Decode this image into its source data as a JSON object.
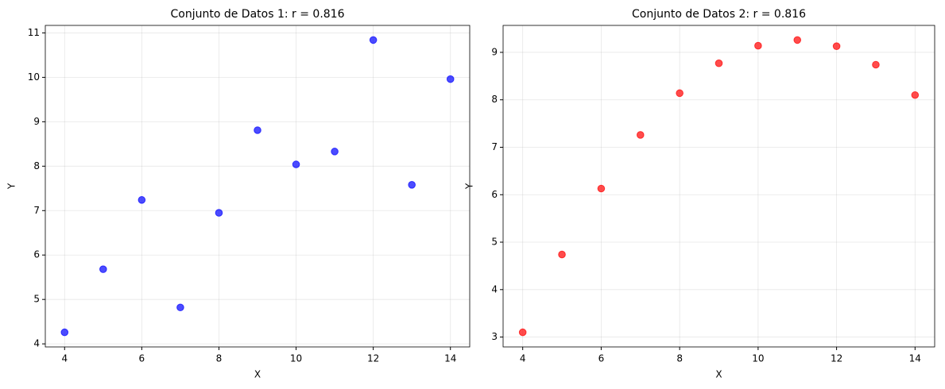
{
  "chart_data": [
    {
      "type": "scatter",
      "title": "Conjunto de Datos 1: r = 0.816",
      "x_label": "X",
      "y_label": "Y",
      "x": [
        10,
        8,
        13,
        9,
        11,
        14,
        6,
        4,
        12,
        7,
        5
      ],
      "series": [
        {
          "color": "#0000ff",
          "values": [
            8.04,
            6.95,
            7.58,
            8.81,
            8.33,
            9.96,
            7.24,
            4.26,
            10.84,
            4.82,
            5.68
          ]
        }
      ],
      "xlim": [
        3.5,
        14.5
      ],
      "xticks": [
        4,
        6,
        8,
        10,
        12,
        14
      ],
      "ylim": [
        3.931,
        11.169
      ],
      "yticks": [
        4,
        5,
        6,
        7,
        8,
        9,
        10,
        11
      ],
      "grid": true
    },
    {
      "type": "scatter",
      "title": "Conjunto de Datos 2: r = 0.816",
      "x_label": "X",
      "y_label": "Y",
      "x": [
        10,
        8,
        13,
        9,
        11,
        14,
        6,
        4,
        12,
        7,
        5
      ],
      "series": [
        {
          "color": "#ff0000",
          "values": [
            9.14,
            8.14,
            8.74,
            8.77,
            9.26,
            8.1,
            6.13,
            3.1,
            9.13,
            7.26,
            4.74
          ]
        }
      ],
      "xlim": [
        3.5,
        14.5
      ],
      "xticks": [
        4,
        6,
        8,
        10,
        12,
        14
      ],
      "ylim": [
        2.792,
        9.568
      ],
      "yticks": [
        3,
        4,
        5,
        6,
        7,
        8,
        9
      ],
      "grid": true
    }
  ]
}
